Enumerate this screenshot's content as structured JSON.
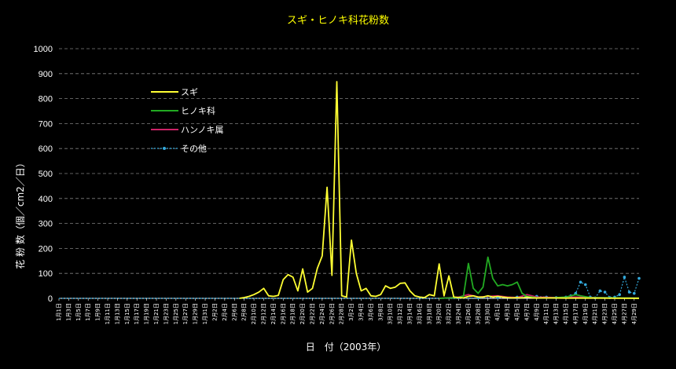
{
  "chart_data": {
    "type": "line",
    "title": "スギ・ヒノキ科花粉数",
    "xlabel": "日　付（2003年）",
    "ylabel": "花 粉 数（個／cm2／日）",
    "ylim": [
      0,
      1000
    ],
    "yticks": [
      0,
      100,
      200,
      300,
      400,
      500,
      600,
      700,
      800,
      900,
      1000
    ],
    "grid": "horizontal-dashed",
    "legend_position": "upper-left",
    "x_start": "1月1日",
    "x_end": "4月30日",
    "x_tick_labels": [
      "1月1日",
      "1月3日",
      "1月5日",
      "1月7日",
      "1月9日",
      "1月11日",
      "1月13日",
      "1月15日",
      "1月17日",
      "1月19日",
      "1月21日",
      "1月23日",
      "1月25日",
      "1月27日",
      "1月29日",
      "1月31日",
      "2月2日",
      "2月4日",
      "2月6日",
      "2月8日",
      "2月10日",
      "2月12日",
      "2月14日",
      "2月16日",
      "2月18日",
      "2月20日",
      "2月22日",
      "2月24日",
      "2月26日",
      "2月28日",
      "3月2日",
      "3月4日",
      "3月6日",
      "3月8日",
      "3月10日",
      "3月12日",
      "3月14日",
      "3月16日",
      "3月18日",
      "3月20日",
      "3月22日",
      "3月24日",
      "3月26日",
      "3月28日",
      "3月30日",
      "4月1日",
      "4月3日",
      "4月5日",
      "4月7日",
      "4月9日",
      "4月11日",
      "4月13日",
      "4月15日",
      "4月17日",
      "4月19日",
      "4月21日",
      "4月23日",
      "4月25日",
      "4月27日",
      "4月29日"
    ],
    "series": [
      {
        "name": "スギ",
        "color": "#ffff33",
        "style": "solid",
        "points": [
          [
            "2月7日",
            0
          ],
          [
            "2月8日",
            3
          ],
          [
            "2月9日",
            8
          ],
          [
            "2月10日",
            15
          ],
          [
            "2月11日",
            25
          ],
          [
            "2月12日",
            40
          ],
          [
            "2月13日",
            10
          ],
          [
            "2月14日",
            8
          ],
          [
            "2月15日",
            12
          ],
          [
            "2月16日",
            75
          ],
          [
            "2月17日",
            95
          ],
          [
            "2月18日",
            85
          ],
          [
            "2月19日",
            30
          ],
          [
            "2月20日",
            118
          ],
          [
            "2月21日",
            25
          ],
          [
            "2月22日",
            40
          ],
          [
            "2月23日",
            120
          ],
          [
            "2月24日",
            170
          ],
          [
            "2月25日",
            445
          ],
          [
            "2月26日",
            92
          ],
          [
            "2月27日",
            868
          ],
          [
            "2月28日",
            10
          ],
          [
            "3月1日",
            5
          ],
          [
            "3月2日",
            233
          ],
          [
            "3月3日",
            100
          ],
          [
            "3月4日",
            30
          ],
          [
            "3月5日",
            40
          ],
          [
            "3月6日",
            10
          ],
          [
            "3月7日",
            8
          ],
          [
            "3月8日",
            15
          ],
          [
            "3月9日",
            50
          ],
          [
            "3月10日",
            40
          ],
          [
            "3月11日",
            45
          ],
          [
            "3月12日",
            60
          ],
          [
            "3月13日",
            62
          ],
          [
            "3月14日",
            30
          ],
          [
            "3月15日",
            10
          ],
          [
            "3月16日",
            5
          ],
          [
            "3月17日",
            3
          ],
          [
            "3月18日",
            15
          ],
          [
            "3月19日",
            10
          ],
          [
            "3月20日",
            138
          ],
          [
            "3月21日",
            10
          ],
          [
            "3月22日",
            90
          ],
          [
            "3月23日",
            5
          ],
          [
            "3月24日",
            3
          ],
          [
            "3月25日",
            2
          ],
          [
            "3月26日",
            8
          ],
          [
            "3月27日",
            10
          ],
          [
            "3月28日",
            5
          ],
          [
            "3月29日",
            5
          ],
          [
            "3月30日",
            10
          ],
          [
            "3月31日",
            5
          ],
          [
            "4月1日",
            8
          ],
          [
            "4月2日",
            5
          ],
          [
            "4月3日",
            3
          ],
          [
            "4月4日",
            2
          ],
          [
            "4月5日",
            3
          ],
          [
            "4月6日",
            2
          ],
          [
            "4月7日",
            5
          ],
          [
            "4月8日",
            2
          ],
          [
            "4月9日",
            1
          ],
          [
            "4月10日",
            2
          ],
          [
            "4月15日",
            1
          ],
          [
            "4月20日",
            1
          ],
          [
            "4月30日",
            0
          ]
        ]
      },
      {
        "name": "ヒノキ科",
        "color": "#22aa22",
        "style": "solid",
        "points": [
          [
            "3月20日",
            0
          ],
          [
            "3月22日",
            2
          ],
          [
            "3月24日",
            3
          ],
          [
            "3月25日",
            10
          ],
          [
            "3月26日",
            140
          ],
          [
            "3月27日",
            40
          ],
          [
            "3月28日",
            20
          ],
          [
            "3月29日",
            45
          ],
          [
            "3月30日",
            165
          ],
          [
            "3月31日",
            80
          ],
          [
            "4月1日",
            50
          ],
          [
            "4月2日",
            55
          ],
          [
            "4月3日",
            50
          ],
          [
            "4月4日",
            55
          ],
          [
            "4月5日",
            65
          ],
          [
            "4月6日",
            20
          ],
          [
            "4月7日",
            8
          ],
          [
            "4月8日",
            5
          ],
          [
            "4月9日",
            2
          ],
          [
            "4月12日",
            2
          ],
          [
            "4月15日",
            5
          ],
          [
            "4月17日",
            15
          ],
          [
            "4月18日",
            10
          ],
          [
            "4月20日",
            3
          ],
          [
            "4月25日",
            2
          ],
          [
            "4月30日",
            1
          ]
        ]
      },
      {
        "name": "ハンノキ属",
        "color": "#cc2266",
        "style": "solid",
        "points": [
          [
            "3月20日",
            0
          ],
          [
            "3月24日",
            5
          ],
          [
            "3月26日",
            15
          ],
          [
            "3月28日",
            5
          ],
          [
            "3月30日",
            8
          ],
          [
            "4月1日",
            10
          ],
          [
            "4月3日",
            5
          ],
          [
            "4月5日",
            3
          ],
          [
            "4月7日",
            15
          ],
          [
            "4月9日",
            5
          ],
          [
            "4月13日",
            3
          ],
          [
            "4月17日",
            5
          ],
          [
            "4月21日",
            3
          ],
          [
            "4月25日",
            2
          ],
          [
            "4月30日",
            1
          ]
        ]
      },
      {
        "name": "その他",
        "color": "#33aadd",
        "style": "dotted",
        "points": [
          [
            "1月1日",
            0
          ],
          [
            "3月24日",
            0
          ],
          [
            "3月28日",
            2
          ],
          [
            "4月1日",
            3
          ],
          [
            "4月5日",
            5
          ],
          [
            "4月9日",
            8
          ],
          [
            "4月11日",
            5
          ],
          [
            "4月13日",
            3
          ],
          [
            "4月15日",
            5
          ],
          [
            "4月16日",
            10
          ],
          [
            "4月17日",
            20
          ],
          [
            "4月18日",
            65
          ],
          [
            "4月19日",
            55
          ],
          [
            "4月20日",
            5
          ],
          [
            "4月21日",
            2
          ],
          [
            "4月22日",
            30
          ],
          [
            "4月23日",
            25
          ],
          [
            "4月24日",
            3
          ],
          [
            "4月25日",
            5
          ],
          [
            "4月26日",
            15
          ],
          [
            "4月27日",
            85
          ],
          [
            "4月28日",
            25
          ],
          [
            "4月29日",
            20
          ],
          [
            "4月30日",
            80
          ]
        ]
      }
    ]
  }
}
